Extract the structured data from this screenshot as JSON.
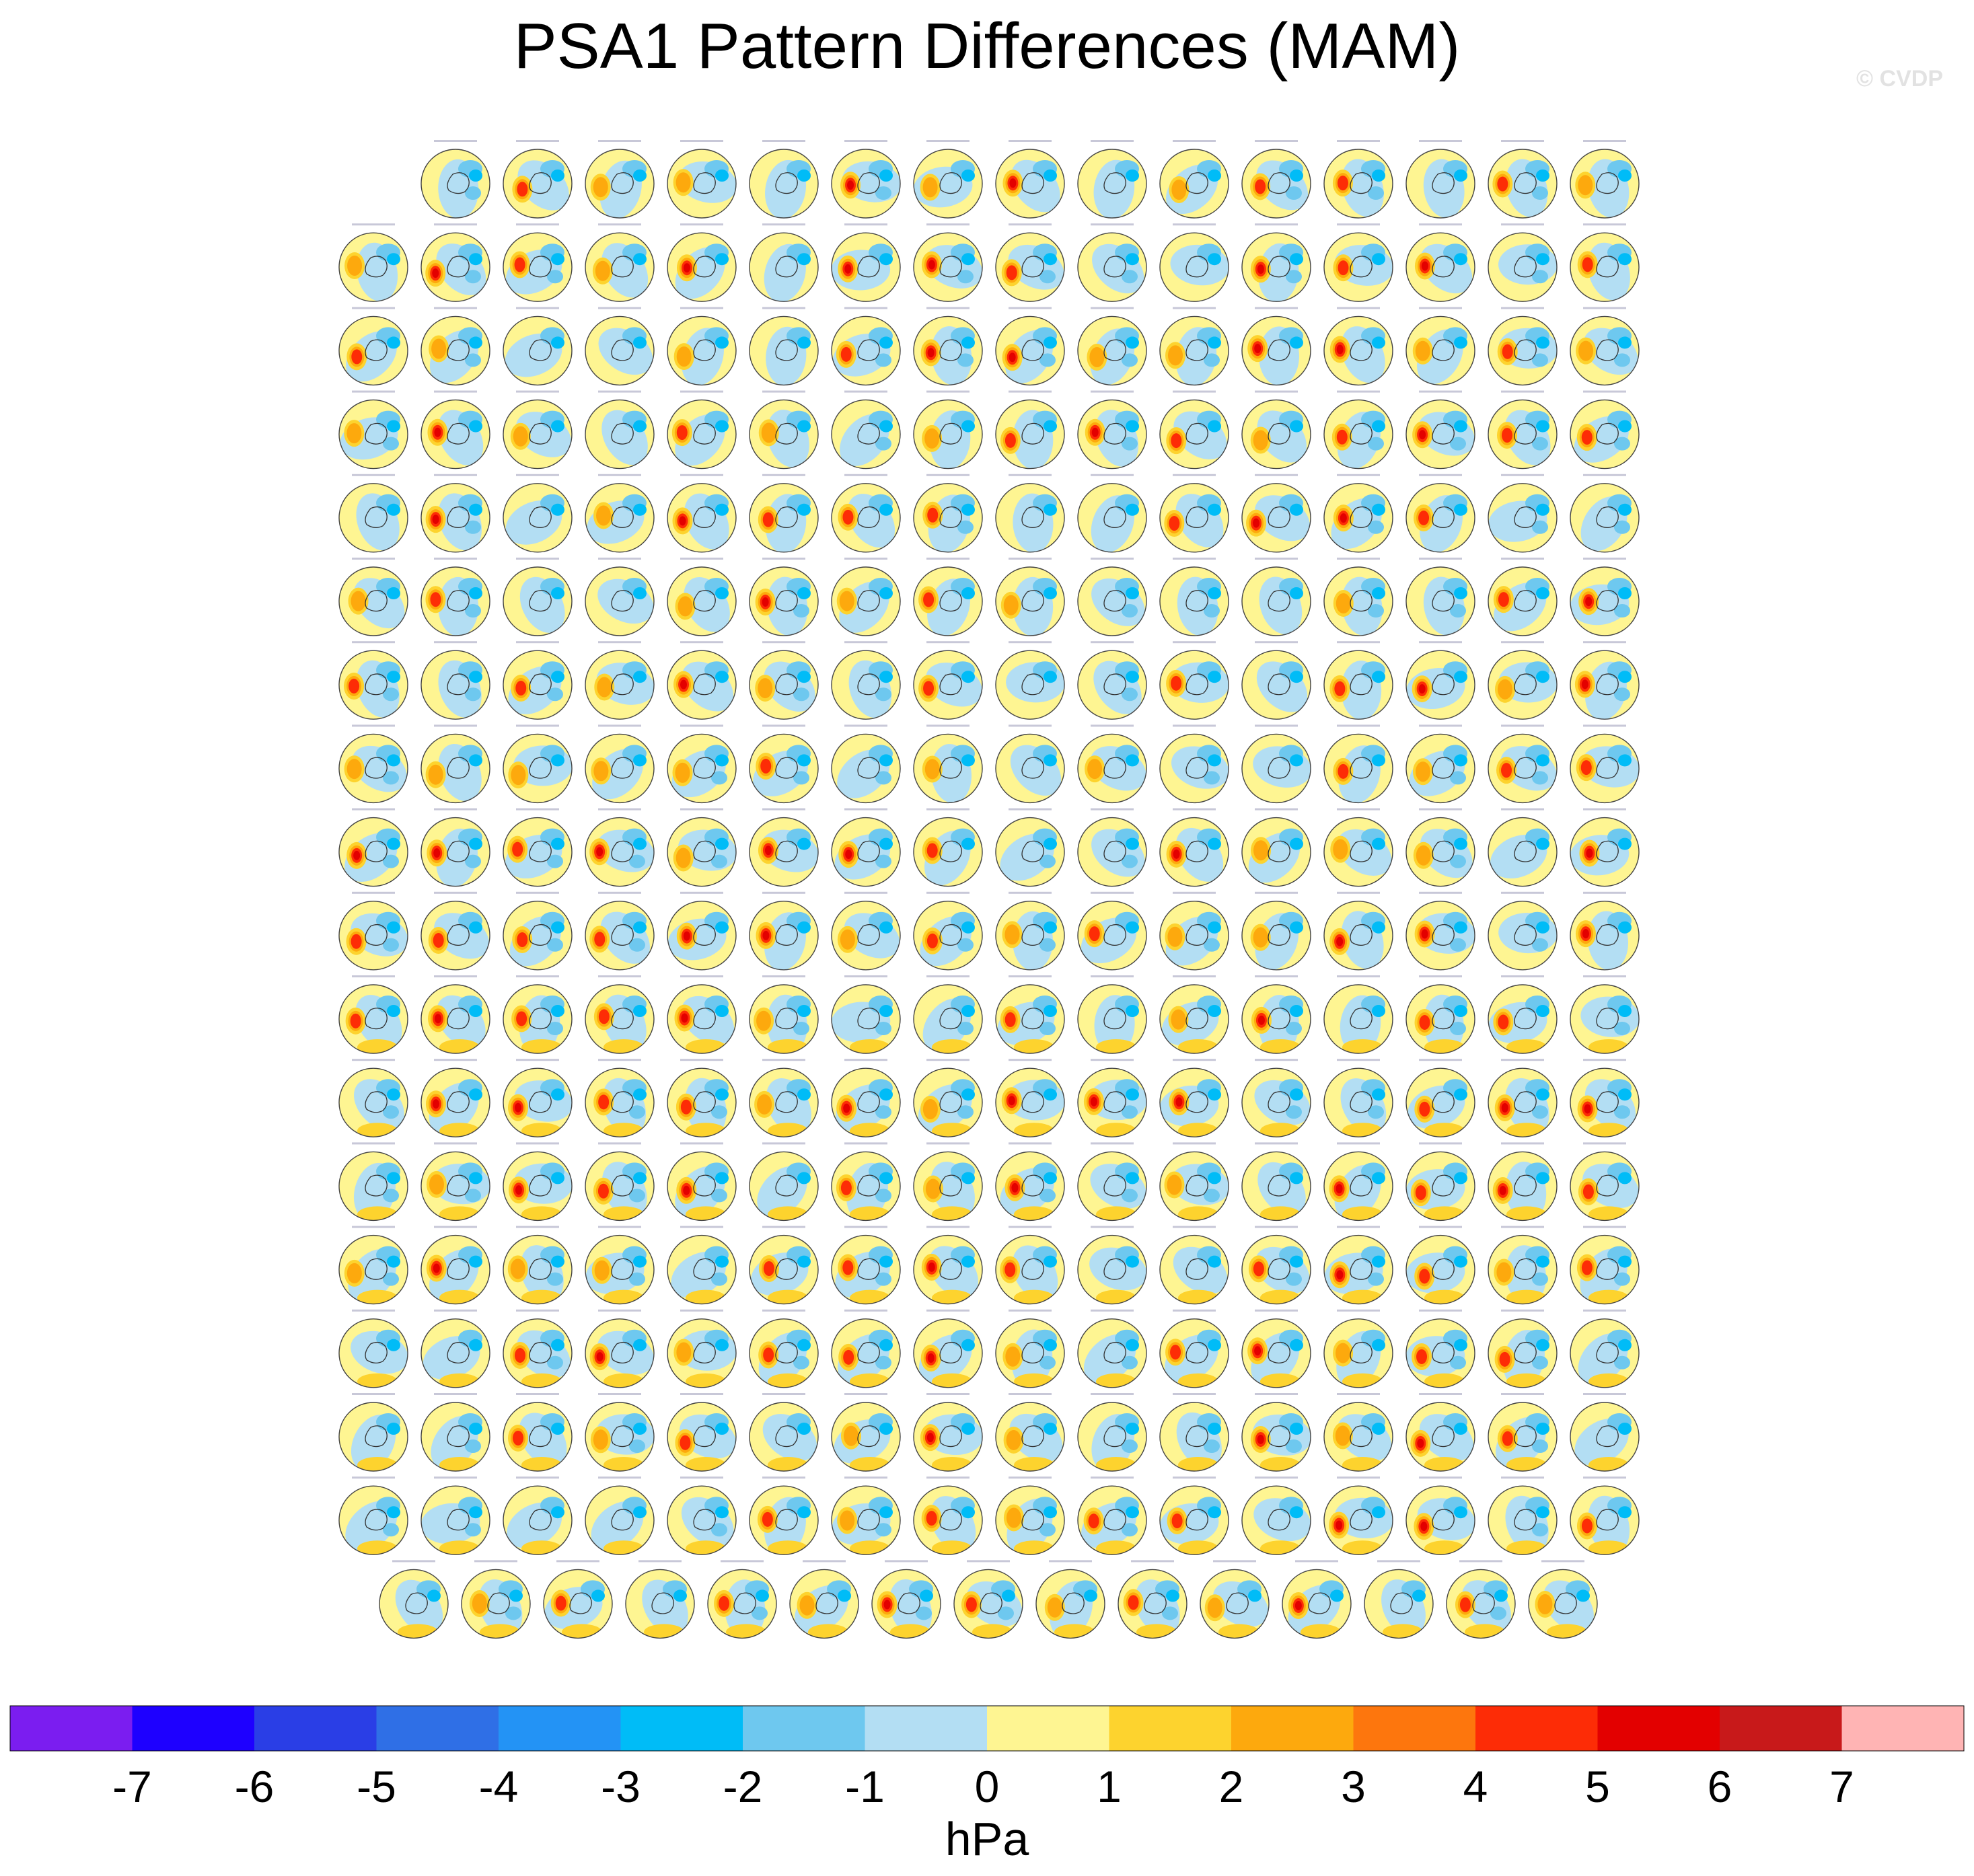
{
  "title": "PSA1 Pattern Differences (MAM)",
  "watermark": "© CVDP",
  "chart_data": {
    "type": "heatmap",
    "title": "PSA1 Pattern Differences (MAM)",
    "description_units": "hPa",
    "grid": {
      "row_counts": [
        15,
        16,
        16,
        16,
        16,
        16,
        16,
        16,
        16,
        16,
        16,
        16,
        16,
        16,
        16,
        16,
        16,
        15
      ],
      "total_panels": 286
    },
    "colorbar": {
      "label": "hPa",
      "ticks": [
        -7,
        -6,
        -5,
        -4,
        -3,
        -2,
        -1,
        0,
        1,
        2,
        3,
        4,
        5,
        6,
        7
      ],
      "colors": [
        "#7b1df0",
        "#1e00ff",
        "#2a3ee6",
        "#2f6fe6",
        "#2393f5",
        "#00bcf7",
        "#6ec8ef",
        "#b3def3",
        "#fef592",
        "#fdd32e",
        "#fda90d",
        "#fd760d",
        "#fd2c06",
        "#e30000",
        "#c8191a",
        "#ffb4b4"
      ]
    }
  }
}
